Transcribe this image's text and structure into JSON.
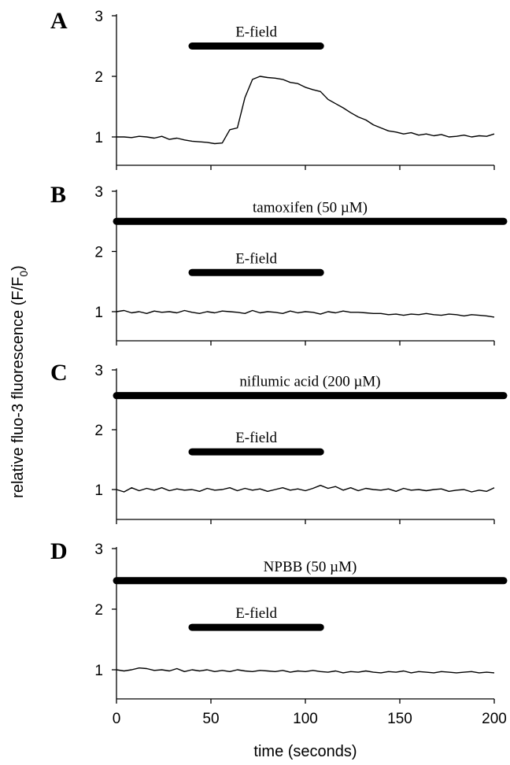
{
  "chart_data": {
    "type": "line",
    "shared_x": {
      "label": "time (seconds)",
      "range": [
        0,
        200
      ],
      "ticks": [
        0,
        50,
        100,
        150,
        200
      ],
      "tick_labels": [
        "0",
        "50",
        "100",
        "150",
        "200"
      ]
    },
    "y_axis_label": "relative fluo-3 fluorescence (F/F0)",
    "y_axis_label_main": "relative fluo-3 fluorescence (F/F",
    "y_axis_label_sub": "0",
    "y_axis_label_close": ")",
    "panels": [
      {
        "letter": "A",
        "ylim": [
          0.5,
          3
        ],
        "yticks": [
          1,
          2,
          3
        ],
        "ytick_labels": [
          "1",
          "2",
          "3"
        ],
        "bars": [
          {
            "label": "E-field",
            "x_range": [
              40,
              108
            ],
            "y": 2.5
          }
        ],
        "series": {
          "x": [
            0,
            4,
            8,
            12,
            16,
            20,
            24,
            28,
            32,
            36,
            40,
            44,
            48,
            52,
            56,
            60,
            64,
            68,
            72,
            76,
            80,
            84,
            88,
            92,
            96,
            100,
            104,
            108,
            112,
            116,
            120,
            124,
            128,
            132,
            136,
            140,
            144,
            148,
            152,
            156,
            160,
            164,
            168,
            172,
            176,
            180,
            184,
            188,
            192,
            196,
            200
          ],
          "y": [
            1.0,
            1.0,
            0.99,
            1.01,
            1.0,
            0.98,
            1.01,
            0.96,
            0.98,
            0.95,
            0.93,
            0.92,
            0.91,
            0.89,
            0.9,
            1.12,
            1.15,
            1.65,
            1.95,
            2.0,
            1.98,
            1.97,
            1.95,
            1.9,
            1.88,
            1.82,
            1.78,
            1.75,
            1.62,
            1.55,
            1.48,
            1.4,
            1.33,
            1.28,
            1.2,
            1.15,
            1.1,
            1.08,
            1.05,
            1.07,
            1.03,
            1.05,
            1.02,
            1.04,
            1.0,
            1.01,
            1.03,
            1.0,
            1.02,
            1.01,
            1.05
          ]
        }
      },
      {
        "letter": "B",
        "ylim": [
          0.5,
          3
        ],
        "yticks": [
          1,
          2,
          3
        ],
        "ytick_labels": [
          "1",
          "2",
          "3"
        ],
        "bars": [
          {
            "label": "tamoxifen (50 µM)",
            "x_range": [
              0,
              205
            ],
            "y": 2.5
          },
          {
            "label": "E-field",
            "x_range": [
              40,
              108
            ],
            "y": 1.65
          }
        ],
        "series": {
          "x": [
            0,
            4,
            8,
            12,
            16,
            20,
            24,
            28,
            32,
            36,
            40,
            44,
            48,
            52,
            56,
            60,
            64,
            68,
            72,
            76,
            80,
            84,
            88,
            92,
            96,
            100,
            104,
            108,
            112,
            116,
            120,
            124,
            128,
            132,
            136,
            140,
            144,
            148,
            152,
            156,
            160,
            164,
            168,
            172,
            176,
            180,
            184,
            188,
            192,
            196,
            200
          ],
          "y": [
            1.0,
            1.02,
            0.98,
            1.0,
            0.97,
            1.01,
            0.99,
            1.0,
            0.98,
            1.02,
            0.99,
            0.97,
            1.0,
            0.98,
            1.01,
            1.0,
            0.99,
            0.97,
            1.02,
            0.98,
            1.0,
            0.99,
            0.97,
            1.01,
            0.98,
            1.0,
            0.99,
            0.96,
            1.0,
            0.98,
            1.01,
            0.99,
            0.99,
            0.98,
            0.97,
            0.97,
            0.95,
            0.96,
            0.94,
            0.96,
            0.95,
            0.97,
            0.95,
            0.94,
            0.96,
            0.95,
            0.93,
            0.95,
            0.94,
            0.93,
            0.91
          ]
        }
      },
      {
        "letter": "C",
        "ylim": [
          0.5,
          3
        ],
        "yticks": [
          1,
          2,
          3
        ],
        "ytick_labels": [
          "1",
          "2",
          "3"
        ],
        "bars": [
          {
            "label": "niflumic acid (200 µM)",
            "x_range": [
              0,
              205
            ],
            "y": 2.57
          },
          {
            "label": "E-field",
            "x_range": [
              40,
              108
            ],
            "y": 1.63
          }
        ],
        "series": {
          "x": [
            0,
            4,
            8,
            12,
            16,
            20,
            24,
            28,
            32,
            36,
            40,
            44,
            48,
            52,
            56,
            60,
            64,
            68,
            72,
            76,
            80,
            84,
            88,
            92,
            96,
            100,
            104,
            108,
            112,
            116,
            120,
            124,
            128,
            132,
            136,
            140,
            144,
            148,
            152,
            156,
            160,
            164,
            168,
            172,
            176,
            180,
            184,
            188,
            192,
            196,
            200
          ],
          "y": [
            1.0,
            0.96,
            1.03,
            0.98,
            1.02,
            0.99,
            1.03,
            0.98,
            1.01,
            0.99,
            1.0,
            0.97,
            1.02,
            0.99,
            1.0,
            1.03,
            0.98,
            1.02,
            0.99,
            1.01,
            0.97,
            1.0,
            1.03,
            0.99,
            1.01,
            0.98,
            1.02,
            1.07,
            1.02,
            1.05,
            0.99,
            1.03,
            0.98,
            1.02,
            1.0,
            0.99,
            1.01,
            0.97,
            1.02,
            0.99,
            1.0,
            0.98,
            1.0,
            1.01,
            0.97,
            0.99,
            1.0,
            0.96,
            0.99,
            0.97,
            1.03
          ]
        }
      },
      {
        "letter": "D",
        "ylim": [
          0.5,
          3
        ],
        "yticks": [
          1,
          2,
          3
        ],
        "ytick_labels": [
          "1",
          "2",
          "3"
        ],
        "bars": [
          {
            "label": "NPBB (50 µM)",
            "x_range": [
              0,
              205
            ],
            "y": 2.47
          },
          {
            "label": "E-field",
            "x_range": [
              40,
              108
            ],
            "y": 1.7
          }
        ],
        "series": {
          "x": [
            0,
            4,
            8,
            12,
            16,
            20,
            24,
            28,
            32,
            36,
            40,
            44,
            48,
            52,
            56,
            60,
            64,
            68,
            72,
            76,
            80,
            84,
            88,
            92,
            96,
            100,
            104,
            108,
            112,
            116,
            120,
            124,
            128,
            132,
            136,
            140,
            144,
            148,
            152,
            156,
            160,
            164,
            168,
            172,
            176,
            180,
            184,
            188,
            192,
            196,
            200
          ],
          "y": [
            1.0,
            0.98,
            1.0,
            1.03,
            1.02,
            0.99,
            1.0,
            0.98,
            1.02,
            0.97,
            1.0,
            0.98,
            1.0,
            0.97,
            0.99,
            0.97,
            1.0,
            0.98,
            0.97,
            0.99,
            0.98,
            0.97,
            0.99,
            0.96,
            0.98,
            0.97,
            0.99,
            0.97,
            0.96,
            0.98,
            0.95,
            0.97,
            0.96,
            0.98,
            0.96,
            0.95,
            0.97,
            0.96,
            0.98,
            0.95,
            0.97,
            0.96,
            0.95,
            0.97,
            0.96,
            0.95,
            0.96,
            0.97,
            0.95,
            0.96,
            0.95
          ]
        }
      }
    ]
  }
}
